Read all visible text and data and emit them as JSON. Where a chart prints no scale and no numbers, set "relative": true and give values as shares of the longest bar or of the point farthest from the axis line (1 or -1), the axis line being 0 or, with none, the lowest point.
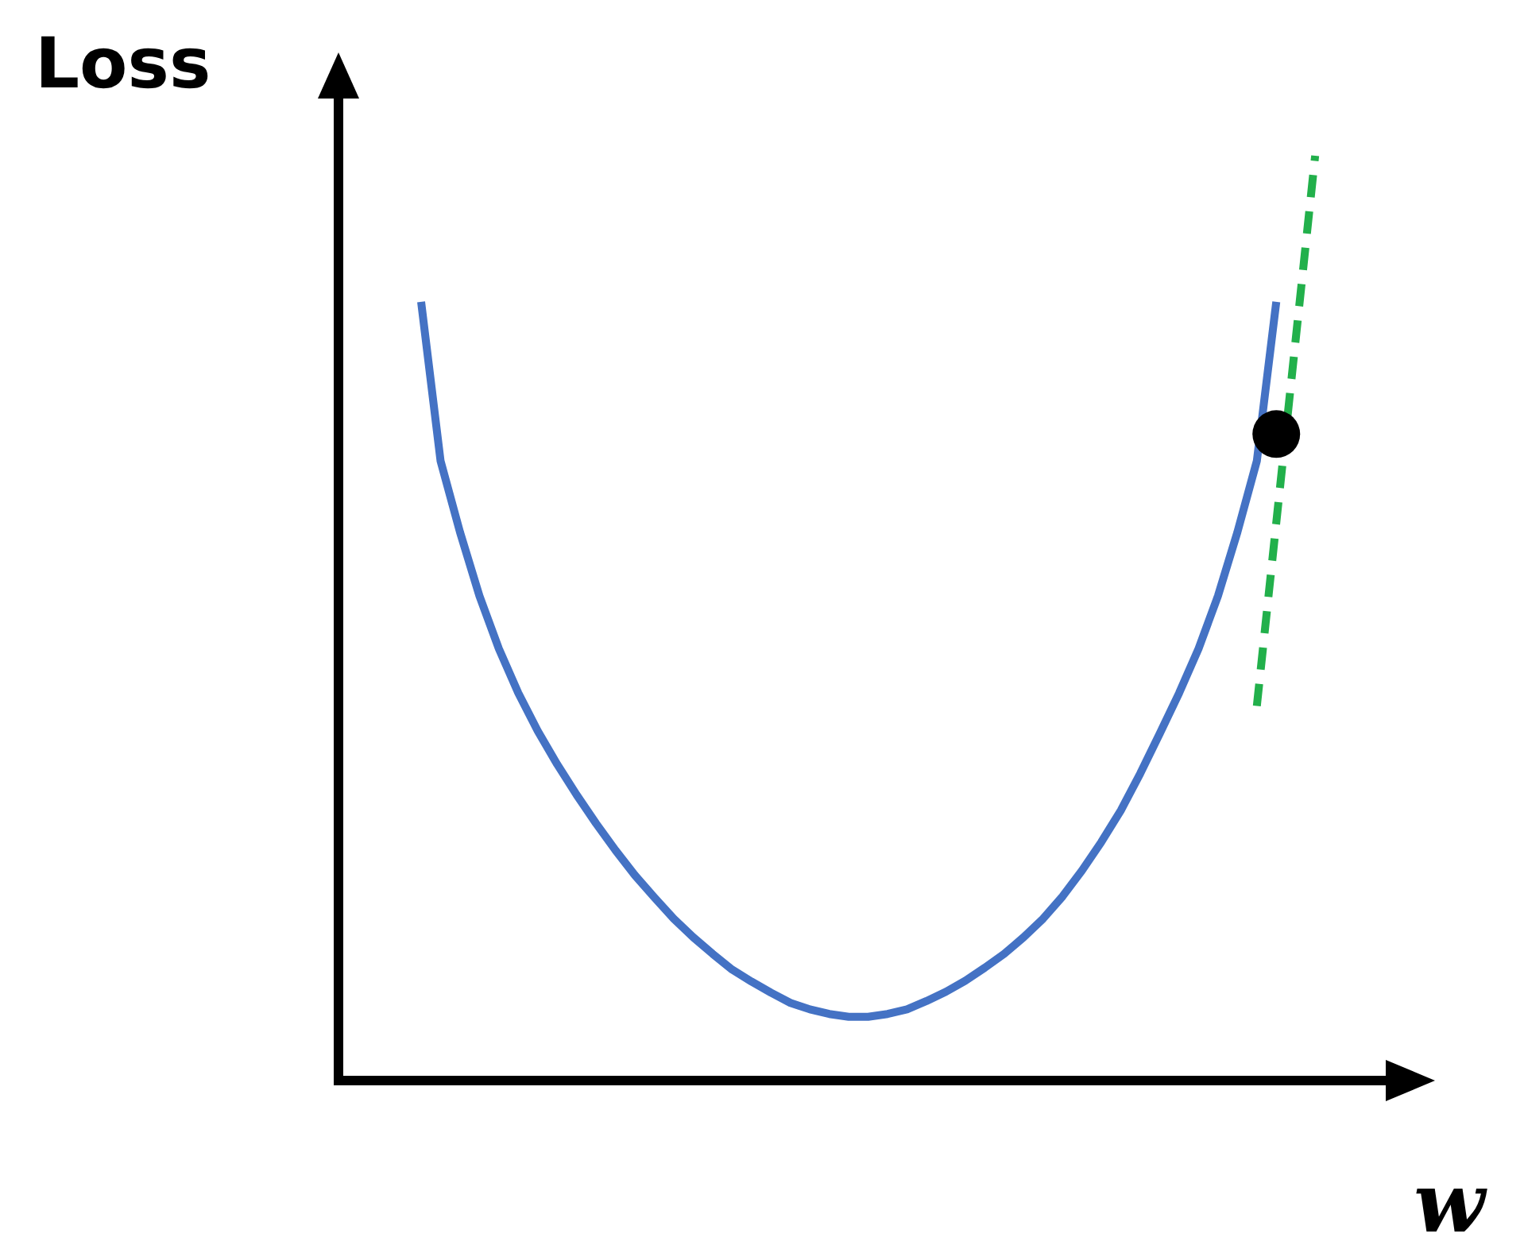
{
  "chart_data": {
    "type": "line",
    "relative": true,
    "ylabel": "Loss",
    "xlabel": "w",
    "tick_labels": false,
    "categories": [
      null,
      null,
      null,
      null,
      null,
      null,
      null,
      null,
      null,
      null,
      null,
      null,
      null,
      null,
      null,
      null,
      null,
      null,
      null,
      null,
      null,
      null,
      null,
      null,
      null,
      null,
      null,
      null,
      null,
      null,
      null,
      null,
      null,
      null,
      null,
      null,
      null,
      null,
      null,
      null,
      null,
      null,
      null,
      null,
      null,
      null,
      null
    ],
    "series": [
      {
        "color": "#4472c4",
        "marker": "none",
        "line_style": "solid",
        "values": [
          0.842,
          0.67,
          0.593,
          0.524,
          0.467,
          0.419,
          0.378,
          0.342,
          0.309,
          0.278,
          0.249,
          0.222,
          0.198,
          0.175,
          0.155,
          0.137,
          0.12,
          0.107,
          0.095,
          0.084,
          0.077,
          0.072,
          0.069,
          0.069,
          0.072,
          0.077,
          0.086,
          0.096,
          0.108,
          0.122,
          0.137,
          0.155,
          0.175,
          0.199,
          0.227,
          0.258,
          0.292,
          0.332,
          0.375,
          0.419,
          0.467,
          0.524,
          0.593,
          0.67,
          0.842,
          null,
          null
        ]
      },
      {
        "color": "#22b04b",
        "marker": "none",
        "line_style": "dashed",
        "values": [
          null,
          null,
          null,
          null,
          null,
          null,
          null,
          null,
          null,
          null,
          null,
          null,
          null,
          null,
          null,
          null,
          null,
          null,
          null,
          null,
          null,
          null,
          null,
          null,
          null,
          null,
          null,
          null,
          null,
          null,
          null,
          null,
          null,
          null,
          null,
          null,
          null,
          null,
          null,
          null,
          null,
          null,
          null,
          0.405,
          null,
          null,
          1
        ]
      },
      {
        "color": "#000000",
        "marker": "circle",
        "values": [
          null,
          null,
          null,
          null,
          null,
          null,
          null,
          null,
          null,
          null,
          null,
          null,
          null,
          null,
          null,
          null,
          null,
          null,
          null,
          null,
          null,
          null,
          null,
          null,
          null,
          null,
          null,
          null,
          null,
          null,
          null,
          null,
          null,
          null,
          null,
          null,
          null,
          null,
          null,
          null,
          null,
          null,
          null,
          null,
          0.699,
          null,
          null
        ]
      }
    ]
  }
}
